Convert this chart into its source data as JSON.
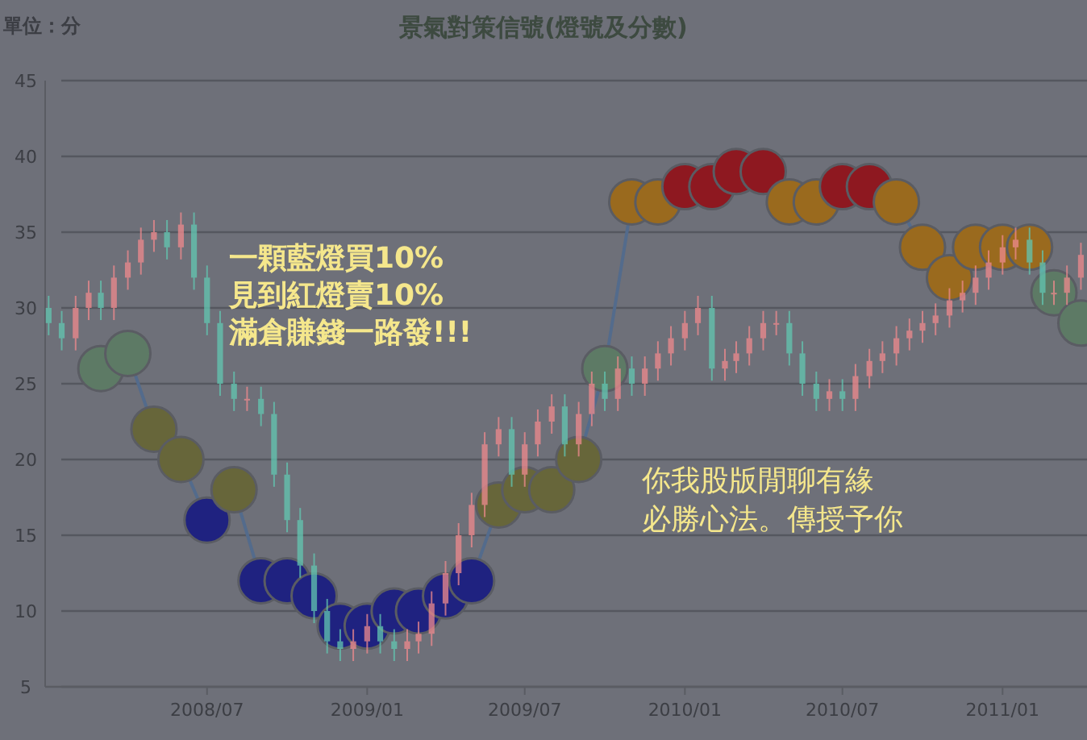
{
  "chart_data": {
    "type": "candlestick",
    "title": "景氣對策信號(燈號及分數)",
    "ylabel": "單位：分",
    "ylim": [
      5,
      45
    ],
    "yticks": [
      5,
      10,
      15,
      20,
      25,
      30,
      35,
      40,
      45
    ],
    "xlim": [
      "2007-12-28",
      "2011-04-08"
    ],
    "xticks": [
      {
        "value": "2008-07-01",
        "label": "2008/07"
      },
      {
        "value": "2009-01-01",
        "label": "2009/01"
      },
      {
        "value": "2009-07-01",
        "label": "2009/07"
      },
      {
        "value": "2010-01-01",
        "label": "2010/01"
      },
      {
        "value": "2010-07-01",
        "label": "2010/07"
      },
      {
        "value": "2011-01-01",
        "label": "2011/01"
      }
    ],
    "grid": "y",
    "annotations": [
      "一顆藍燈買10%",
      "見到紅燈賣10%",
      "滿倉賺錢一路發!!!",
      "你我股版閒聊有緣",
      "必勝心法。傳授予你"
    ],
    "x": [
      "2008-01-01",
      "2008-01-16",
      "2008-02-01",
      "2008-02-16",
      "2008-03-01",
      "2008-03-16",
      "2008-04-01",
      "2008-04-16",
      "2008-05-01",
      "2008-05-16",
      "2008-06-01",
      "2008-06-16",
      "2008-07-01",
      "2008-07-16",
      "2008-08-01",
      "2008-08-16",
      "2008-09-01",
      "2008-09-16",
      "2008-10-01",
      "2008-10-16",
      "2008-11-01",
      "2008-11-16",
      "2008-12-01",
      "2008-12-16",
      "2009-01-01",
      "2009-01-16",
      "2009-02-01",
      "2009-02-16",
      "2009-03-01",
      "2009-03-16",
      "2009-04-01",
      "2009-04-16",
      "2009-05-01",
      "2009-05-16",
      "2009-06-01",
      "2009-06-16",
      "2009-07-01",
      "2009-07-16",
      "2009-08-01",
      "2009-08-16",
      "2009-09-01",
      "2009-09-16",
      "2009-10-01",
      "2009-10-16",
      "2009-11-01",
      "2009-11-16",
      "2009-12-01",
      "2009-12-16",
      "2010-01-01",
      "2010-01-16",
      "2010-02-01",
      "2010-02-16",
      "2010-03-01",
      "2010-03-16",
      "2010-04-01",
      "2010-04-16",
      "2010-05-01",
      "2010-05-16",
      "2010-06-01",
      "2010-06-16",
      "2010-07-01",
      "2010-07-16",
      "2010-08-01",
      "2010-08-16",
      "2010-09-01",
      "2010-09-16",
      "2010-10-01",
      "2010-10-16",
      "2010-11-01",
      "2010-11-16",
      "2010-12-01",
      "2010-12-16",
      "2011-01-01",
      "2011-01-16",
      "2011-02-01",
      "2011-02-16",
      "2011-03-01",
      "2011-03-16",
      "2011-04-01"
    ],
    "ohlc": [
      [
        30,
        30.8,
        28.2,
        29
      ],
      [
        29,
        29.8,
        27.2,
        28
      ],
      [
        28,
        30.8,
        27.2,
        30
      ],
      [
        30,
        31.8,
        29.2,
        31
      ],
      [
        31,
        31.8,
        29.2,
        30
      ],
      [
        30,
        32.8,
        29.2,
        32
      ],
      [
        32,
        33.8,
        31.2,
        33
      ],
      [
        33,
        35.3,
        32.2,
        34.5
      ],
      [
        34.5,
        35.8,
        33.7,
        35
      ],
      [
        35,
        35.8,
        33.2,
        34
      ],
      [
        34,
        36.3,
        33.2,
        35.5
      ],
      [
        35.5,
        36.3,
        31.2,
        32
      ],
      [
        32,
        32.8,
        28.2,
        29
      ],
      [
        29,
        29.8,
        24.2,
        25
      ],
      [
        25,
        25.8,
        23.2,
        24
      ],
      [
        24,
        24.8,
        23.2,
        24
      ],
      [
        24,
        24.8,
        22.2,
        23
      ],
      [
        23,
        23.8,
        18.2,
        19
      ],
      [
        19,
        19.8,
        15.2,
        16
      ],
      [
        16,
        16.8,
        12.2,
        13
      ],
      [
        13,
        13.8,
        9.2,
        10
      ],
      [
        10,
        10.8,
        7.2,
        8
      ],
      [
        8,
        8.8,
        6.7,
        7.5
      ],
      [
        7.5,
        8.8,
        6.7,
        8
      ],
      [
        8,
        9.8,
        7.2,
        9
      ],
      [
        9,
        9.8,
        7.2,
        8
      ],
      [
        8,
        8.8,
        6.7,
        7.5
      ],
      [
        7.5,
        8.8,
        6.7,
        8
      ],
      [
        8,
        9.3,
        7.2,
        8.5
      ],
      [
        8.5,
        11.3,
        7.7,
        10.5
      ],
      [
        10.5,
        13.3,
        9.7,
        12.5
      ],
      [
        12.5,
        15.8,
        11.7,
        15
      ],
      [
        15,
        17.8,
        14.2,
        17
      ],
      [
        17,
        21.8,
        16.2,
        21
      ],
      [
        21,
        22.8,
        20.2,
        22
      ],
      [
        22,
        22.8,
        18.2,
        19
      ],
      [
        19,
        21.8,
        18.2,
        21
      ],
      [
        21,
        23.3,
        20.2,
        22.5
      ],
      [
        22.5,
        24.3,
        21.7,
        23.5
      ],
      [
        23.5,
        24.3,
        20.2,
        21
      ],
      [
        21,
        23.8,
        20.2,
        23
      ],
      [
        23,
        25.8,
        22.2,
        25
      ],
      [
        25,
        25.8,
        23.2,
        24
      ],
      [
        24,
        26.8,
        23.2,
        26
      ],
      [
        26,
        26.8,
        24.2,
        25
      ],
      [
        25,
        26.8,
        24.2,
        26
      ],
      [
        26,
        27.8,
        25.2,
        27
      ],
      [
        27,
        28.8,
        26.2,
        28
      ],
      [
        28,
        29.8,
        27.2,
        29
      ],
      [
        29,
        30.8,
        28.2,
        30
      ],
      [
        30,
        30.8,
        25.2,
        26
      ],
      [
        26,
        27.3,
        25.2,
        26.5
      ],
      [
        26.5,
        27.8,
        25.7,
        27
      ],
      [
        27,
        28.8,
        26.2,
        28
      ],
      [
        28,
        29.8,
        27.2,
        29
      ],
      [
        29,
        29.8,
        28.2,
        29
      ],
      [
        29,
        29.8,
        26.2,
        27
      ],
      [
        27,
        27.8,
        24.2,
        25
      ],
      [
        25,
        25.8,
        23.2,
        24
      ],
      [
        24,
        25.3,
        23.2,
        24.5
      ],
      [
        24.5,
        25.3,
        23.2,
        24
      ],
      [
        24,
        26.3,
        23.2,
        25.5
      ],
      [
        25.5,
        27.3,
        24.7,
        26.5
      ],
      [
        26.5,
        27.8,
        25.7,
        27
      ],
      [
        27,
        28.8,
        26.2,
        28
      ],
      [
        28,
        29.3,
        27.2,
        28.5
      ],
      [
        28.5,
        29.8,
        27.7,
        29
      ],
      [
        29,
        30.3,
        28.2,
        29.5
      ],
      [
        29.5,
        31.3,
        28.7,
        30.5
      ],
      [
        30.5,
        31.8,
        29.7,
        31
      ],
      [
        31,
        32.8,
        30.2,
        32
      ],
      [
        32,
        33.8,
        31.2,
        33
      ],
      [
        33,
        34.8,
        32.2,
        34
      ],
      [
        34,
        35.3,
        33.2,
        34.5
      ],
      [
        34.5,
        35.3,
        32.2,
        33
      ],
      [
        33,
        33.8,
        30.2,
        31
      ],
      [
        31,
        31.8,
        30.2,
        31
      ],
      [
        31,
        32.8,
        30.2,
        32
      ],
      [
        32,
        34.3,
        31.2,
        33.5
      ]
    ],
    "series": [
      {
        "type": "line",
        "color": "#536b8c",
        "marker": "circle",
        "x": [
          "2008-03-01",
          "2008-04-01",
          "2008-05-01",
          "2008-06-01",
          "2008-07-01",
          "2008-08-01",
          "2008-09-01",
          "2008-10-01",
          "2008-11-01",
          "2008-12-01",
          "2009-01-01",
          "2009-02-01",
          "2009-03-01",
          "2009-04-01",
          "2009-05-01",
          "2009-06-01",
          "2009-07-01",
          "2009-08-01",
          "2009-09-01",
          "2009-10-01",
          "2009-11-01",
          "2009-12-01",
          "2010-01-01",
          "2010-02-01",
          "2010-03-01",
          "2010-04-01",
          "2010-05-01",
          "2010-06-01",
          "2010-07-01",
          "2010-08-01",
          "2010-09-01",
          "2010-10-01",
          "2010-11-01",
          "2010-12-01",
          "2011-01-01",
          "2011-02-01",
          "2011-03-01",
          "2011-04-01"
        ],
        "values": [
          26,
          27,
          22,
          20,
          16,
          18,
          12,
          12,
          11,
          9,
          9,
          10,
          10,
          11,
          12,
          17,
          18,
          18,
          20,
          26,
          37,
          37,
          38,
          38,
          39,
          39,
          37,
          37,
          38,
          38,
          37,
          34,
          32,
          34,
          34,
          34,
          31,
          29
        ],
        "colors": [
          "#5d7a65",
          "#5d7a65",
          "#67663a",
          "#67663a",
          "#1f2280",
          "#67663a",
          "#1f2280",
          "#1f2280",
          "#1f2280",
          "#1f2280",
          "#1f2280",
          "#1f2280",
          "#1f2280",
          "#1f2280",
          "#1f2280",
          "#67663a",
          "#67663a",
          "#67663a",
          "#67663a",
          "#5d7a65",
          "#9a6a1e",
          "#9a6a1e",
          "#8e1820",
          "#8e1820",
          "#8e1820",
          "#8e1820",
          "#9a6a1e",
          "#9a6a1e",
          "#8e1820",
          "#8e1820",
          "#9a6a1e",
          "#9a6a1e",
          "#9a6a1e",
          "#9a6a1e",
          "#9a6a1e",
          "#9a6a1e",
          "#5d7a65",
          "#5d7a65"
        ]
      }
    ]
  }
}
